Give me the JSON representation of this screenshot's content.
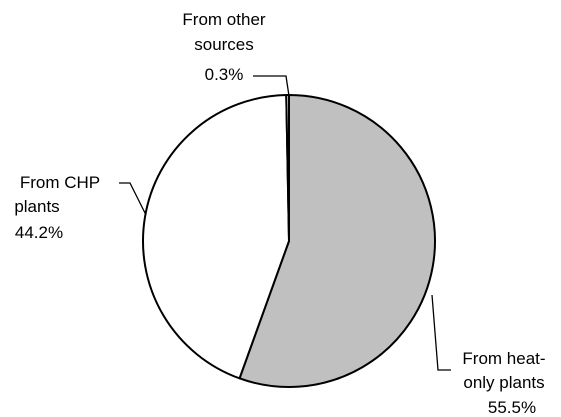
{
  "chart_data": {
    "type": "pie",
    "title": "",
    "start_angle_deg": 0,
    "direction": "clockwise",
    "slices": [
      {
        "name_lines": [
          "From heat-",
          "only plants"
        ],
        "value_text": "55.5%",
        "value": 55.5,
        "color": "#c0c0c0"
      },
      {
        "name_lines": [
          "From CHP",
          "plants"
        ],
        "value_text": "44.2%",
        "value": 44.2,
        "color": "#ffffff"
      },
      {
        "name_lines": [
          "From other",
          "sources"
        ],
        "value_text": "0.3%",
        "value": 0.3,
        "color": "#ffffff"
      }
    ]
  }
}
